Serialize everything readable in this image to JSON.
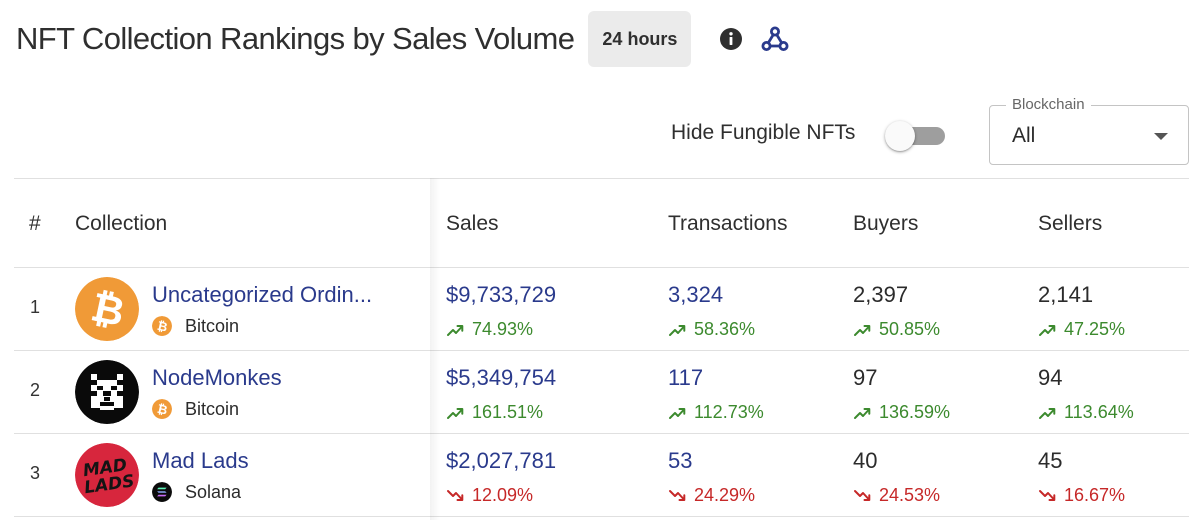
{
  "header": {
    "title": "NFT Collection Rankings by Sales Volume",
    "period": "24 hours",
    "info_icon": "info-circle-icon",
    "webhook_icon": "webhook-icon"
  },
  "controls": {
    "hide_fungible_label": "Hide Fungible NFTs",
    "hide_fungible_on": false,
    "blockchain_label": "Blockchain",
    "blockchain_value": "All"
  },
  "table": {
    "columns": {
      "rank": "#",
      "collection": "Collection",
      "sales": "Sales",
      "transactions": "Transactions",
      "buyers": "Buyers",
      "sellers": "Sellers"
    },
    "rows": [
      {
        "rank": "1",
        "name": "Uncategorized Ordin...",
        "chain": "Bitcoin",
        "logo_icon": "bitcoin-icon",
        "sales": "$9,733,729",
        "sales_change": "74.93%",
        "transactions": "3,324",
        "transactions_change": "58.36%",
        "buyers": "2,397",
        "buyers_change": "50.85%",
        "sellers": "2,141",
        "sellers_change": "47.25%",
        "trend": "up"
      },
      {
        "rank": "2",
        "name": "NodeMonkes",
        "chain": "Bitcoin",
        "logo_icon": "pixel-monkey-icon",
        "sales": "$5,349,754",
        "sales_change": "161.51%",
        "transactions": "117",
        "transactions_change": "112.73%",
        "buyers": "97",
        "buyers_change": "136.59%",
        "sellers": "94",
        "sellers_change": "113.64%",
        "trend": "up"
      },
      {
        "rank": "3",
        "name": "Mad Lads",
        "chain": "Solana",
        "logo_icon": "mad-lads-logo",
        "logo_text": [
          "MAD",
          "LADS"
        ],
        "sales": "$2,027,781",
        "sales_change": "12.09%",
        "transactions": "53",
        "transactions_change": "24.29%",
        "buyers": "40",
        "buyers_change": "24.53%",
        "sellers": "45",
        "sellers_change": "16.67%",
        "trend": "down"
      }
    ]
  },
  "colors": {
    "link": "#2a3a8c",
    "up": "#3c8a2e",
    "down": "#c62828",
    "bitcoin": "#f09a37",
    "mad_lads": "#d7263d",
    "webhook": "#2a3a8c"
  }
}
